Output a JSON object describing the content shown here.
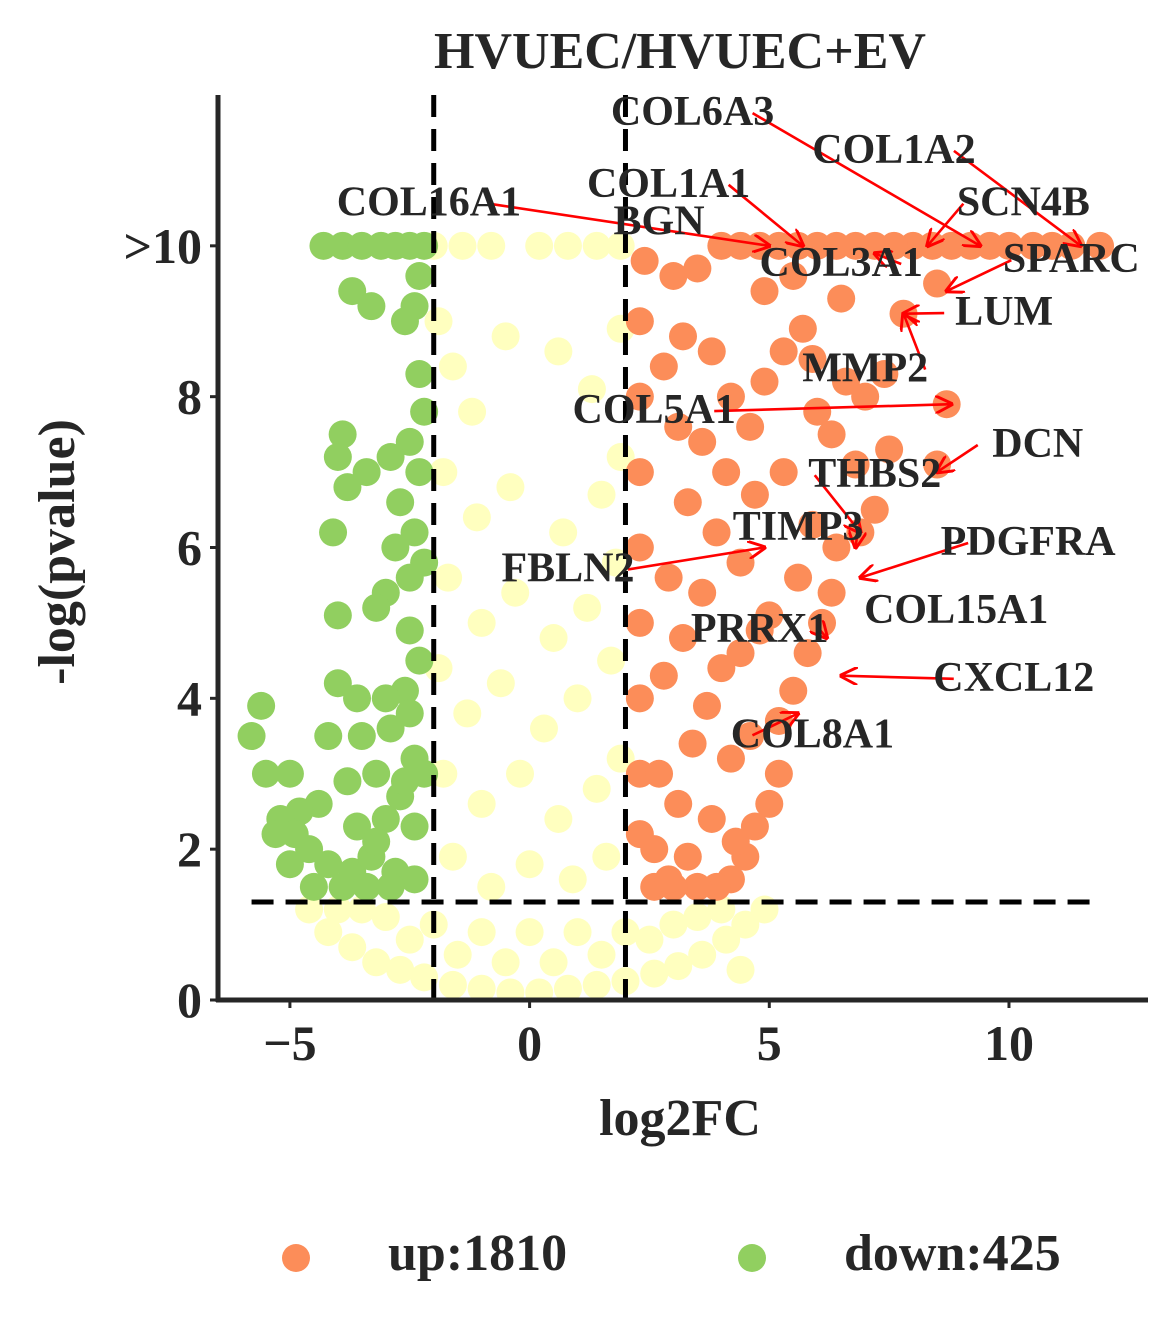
{
  "chart_data": {
    "type": "scatter",
    "title": "HVUEC/HVUEC+EV",
    "xlabel": "log2FC",
    "ylabel": "-log(pvalue)",
    "xlim": [
      -6.5,
      12.9
    ],
    "ylim": [
      0,
      12
    ],
    "x_ticks": [
      {
        "value": -5,
        "label": "−5"
      },
      {
        "value": 0,
        "label": "0"
      },
      {
        "value": 5,
        "label": "5"
      },
      {
        "value": 10,
        "label": "10"
      }
    ],
    "y_ticks": [
      {
        "value": 0,
        "label": "0"
      },
      {
        "value": 2,
        "label": "2"
      },
      {
        "value": 4,
        "label": "4"
      },
      {
        "value": 6,
        "label": "6"
      },
      {
        "value": 8,
        "label": "8"
      },
      {
        "value": 10,
        "label": ">10"
      }
    ],
    "thresholds": {
      "log2fc": [
        -2,
        2
      ],
      "neg_log_p": 1.3
    },
    "grid": false,
    "legend_position": "bottom",
    "colors": {
      "up": "#fc8d59",
      "down": "#91cf60",
      "ns": "#ffffbf",
      "arrow": "#ff0000",
      "threshold_line": "#000000",
      "axis": "#262626"
    },
    "series": [
      {
        "name": "up:1810",
        "key": "up",
        "color": "#fc8d59"
      },
      {
        "name": "down:425",
        "key": "down",
        "color": "#91cf60"
      }
    ],
    "up_points": [
      [
        11.9,
        10
      ],
      [
        11.3,
        10
      ],
      [
        10.9,
        10
      ],
      [
        10.5,
        10
      ],
      [
        10.0,
        10
      ],
      [
        9.6,
        10
      ],
      [
        9.2,
        10
      ],
      [
        8.8,
        10
      ],
      [
        8.4,
        10
      ],
      [
        8.0,
        10
      ],
      [
        7.6,
        10
      ],
      [
        7.2,
        10
      ],
      [
        6.8,
        10
      ],
      [
        6.4,
        10
      ],
      [
        6.0,
        10
      ],
      [
        5.6,
        10
      ],
      [
        5.2,
        10
      ],
      [
        4.8,
        10
      ],
      [
        4.4,
        10
      ],
      [
        4.0,
        10
      ],
      [
        8.5,
        9.5
      ],
      [
        7.8,
        9.1
      ],
      [
        6.5,
        9.3
      ],
      [
        5.5,
        9.6
      ],
      [
        4.9,
        9.4
      ],
      [
        5.7,
        8.9
      ],
      [
        5.9,
        8.5
      ],
      [
        6.6,
        8.2
      ],
      [
        7.0,
        8.0
      ],
      [
        7.4,
        8.3
      ],
      [
        8.7,
        7.9
      ],
      [
        8.5,
        7.1
      ],
      [
        7.5,
        7.3
      ],
      [
        6.8,
        7.1
      ],
      [
        6.3,
        7.5
      ],
      [
        6.0,
        7.8
      ],
      [
        5.3,
        7.0
      ],
      [
        7.2,
        6.5
      ],
      [
        6.9,
        6.2
      ],
      [
        6.4,
        6.0
      ],
      [
        5.9,
        6.3
      ],
      [
        5.6,
        5.6
      ],
      [
        6.3,
        5.4
      ],
      [
        6.1,
        5.0
      ],
      [
        5.8,
        4.6
      ],
      [
        5.5,
        4.1
      ],
      [
        5.2,
        3.7
      ],
      [
        5.0,
        5.1
      ],
      [
        4.8,
        4.9
      ],
      [
        4.4,
        4.6
      ],
      [
        4.6,
        3.5
      ],
      [
        5.2,
        3.0
      ],
      [
        5.0,
        2.6
      ],
      [
        4.7,
        2.3
      ],
      [
        4.5,
        1.9
      ],
      [
        4.2,
        1.6
      ],
      [
        3.9,
        1.5
      ],
      [
        3.5,
        1.5
      ],
      [
        3.0,
        1.5
      ],
      [
        2.6,
        1.5
      ],
      [
        2.3,
        2.2
      ],
      [
        2.3,
        3.0
      ],
      [
        2.3,
        4.0
      ],
      [
        2.3,
        5.0
      ],
      [
        2.3,
        6.0
      ],
      [
        2.3,
        7.0
      ],
      [
        2.3,
        8.0
      ],
      [
        2.3,
        9.0
      ],
      [
        2.4,
        9.8
      ],
      [
        3.0,
        9.6
      ],
      [
        3.5,
        9.7
      ],
      [
        3.2,
        8.8
      ],
      [
        3.8,
        8.6
      ],
      [
        4.2,
        8.0
      ],
      [
        3.6,
        7.4
      ],
      [
        4.1,
        7.0
      ],
      [
        3.1,
        7.6
      ],
      [
        2.8,
        8.4
      ],
      [
        3.3,
        6.6
      ],
      [
        3.9,
        6.2
      ],
      [
        4.4,
        5.8
      ],
      [
        3.6,
        5.4
      ],
      [
        2.9,
        5.6
      ],
      [
        3.2,
        4.8
      ],
      [
        4.0,
        4.4
      ],
      [
        3.7,
        3.9
      ],
      [
        2.8,
        4.3
      ],
      [
        3.4,
        3.4
      ],
      [
        4.2,
        3.2
      ],
      [
        2.7,
        3.0
      ],
      [
        3.1,
        2.6
      ],
      [
        3.8,
        2.4
      ],
      [
        4.3,
        2.1
      ],
      [
        2.6,
        2.0
      ],
      [
        3.3,
        1.9
      ],
      [
        2.9,
        1.6
      ],
      [
        4.6,
        7.6
      ],
      [
        4.9,
        8.2
      ],
      [
        5.3,
        8.6
      ],
      [
        4.7,
        6.7
      ]
    ],
    "down_points": [
      [
        -4.3,
        10
      ],
      [
        -3.9,
        10
      ],
      [
        -3.5,
        10
      ],
      [
        -3.1,
        10
      ],
      [
        -2.8,
        10
      ],
      [
        -2.5,
        10
      ],
      [
        -2.2,
        10
      ],
      [
        -2.3,
        9.6
      ],
      [
        -2.4,
        9.2
      ],
      [
        -3.7,
        9.4
      ],
      [
        -3.3,
        9.2
      ],
      [
        -2.6,
        9.0
      ],
      [
        -2.3,
        8.3
      ],
      [
        -2.2,
        7.8
      ],
      [
        -2.5,
        7.4
      ],
      [
        -2.9,
        7.2
      ],
      [
        -3.4,
        7.0
      ],
      [
        -3.9,
        7.5
      ],
      [
        -4.0,
        7.2
      ],
      [
        -3.8,
        6.8
      ],
      [
        -2.7,
        6.6
      ],
      [
        -2.4,
        6.2
      ],
      [
        -2.2,
        5.8
      ],
      [
        -4.1,
        6.2
      ],
      [
        -2.8,
        6.0
      ],
      [
        -3.0,
        5.4
      ],
      [
        -3.2,
        5.2
      ],
      [
        -4.0,
        5.1
      ],
      [
        -2.5,
        4.9
      ],
      [
        -2.3,
        4.5
      ],
      [
        -2.6,
        4.1
      ],
      [
        -3.0,
        4.0
      ],
      [
        -3.6,
        4.0
      ],
      [
        -4.0,
        4.2
      ],
      [
        -2.5,
        3.8
      ],
      [
        -2.9,
        3.6
      ],
      [
        -3.5,
        3.5
      ],
      [
        -4.2,
        3.5
      ],
      [
        -2.4,
        3.2
      ],
      [
        -3.2,
        3.0
      ],
      [
        -3.8,
        2.9
      ],
      [
        -2.7,
        2.7
      ],
      [
        -3.0,
        2.4
      ],
      [
        -3.6,
        2.3
      ],
      [
        -4.4,
        2.6
      ],
      [
        -4.8,
        2.5
      ],
      [
        -5.2,
        2.4
      ],
      [
        -5.5,
        3.0
      ],
      [
        -5.8,
        3.5
      ],
      [
        -5.6,
        3.9
      ],
      [
        -5.0,
        3.0
      ],
      [
        -4.6,
        2.0
      ],
      [
        -4.2,
        1.8
      ],
      [
        -3.7,
        1.7
      ],
      [
        -3.3,
        1.9
      ],
      [
        -2.8,
        1.7
      ],
      [
        -2.4,
        1.6
      ],
      [
        -5.0,
        1.8
      ],
      [
        -4.5,
        1.5
      ],
      [
        -3.9,
        1.5
      ],
      [
        -3.4,
        1.5
      ],
      [
        -2.9,
        1.5
      ],
      [
        -2.4,
        2.3
      ],
      [
        -2.6,
        2.9
      ],
      [
        -3.2,
        2.1
      ],
      [
        -4.9,
        2.2
      ],
      [
        -5.3,
        2.2
      ],
      [
        -2.3,
        7.0
      ],
      [
        -2.5,
        5.6
      ],
      [
        -2.2,
        3.0
      ]
    ],
    "ns_points": [
      [
        -2.0,
        10
      ],
      [
        -1.4,
        10
      ],
      [
        -0.8,
        10
      ],
      [
        0.2,
        10
      ],
      [
        0.8,
        10
      ],
      [
        1.4,
        10
      ],
      [
        1.9,
        10
      ],
      [
        -1.9,
        9.0
      ],
      [
        -1.6,
        8.4
      ],
      [
        -1.2,
        7.8
      ],
      [
        -0.5,
        8.8
      ],
      [
        0.6,
        8.6
      ],
      [
        1.3,
        8.1
      ],
      [
        1.9,
        8.9
      ],
      [
        -1.8,
        7.0
      ],
      [
        -1.1,
        6.4
      ],
      [
        -0.4,
        6.8
      ],
      [
        0.7,
        6.2
      ],
      [
        1.5,
        6.7
      ],
      [
        1.9,
        7.2
      ],
      [
        -1.7,
        5.6
      ],
      [
        -1.0,
        5.0
      ],
      [
        -0.3,
        5.4
      ],
      [
        0.5,
        4.8
      ],
      [
        1.2,
        5.2
      ],
      [
        1.8,
        5.8
      ],
      [
        -1.9,
        4.4
      ],
      [
        -1.3,
        3.8
      ],
      [
        -0.6,
        4.2
      ],
      [
        0.3,
        3.6
      ],
      [
        1.0,
        4.0
      ],
      [
        1.7,
        4.5
      ],
      [
        -1.8,
        3.0
      ],
      [
        -1.0,
        2.6
      ],
      [
        -0.2,
        3.0
      ],
      [
        0.6,
        2.4
      ],
      [
        1.4,
        2.8
      ],
      [
        1.9,
        3.2
      ],
      [
        -1.6,
        1.9
      ],
      [
        -0.8,
        1.5
      ],
      [
        0.0,
        1.8
      ],
      [
        0.9,
        1.6
      ],
      [
        1.6,
        1.9
      ],
      [
        -4.6,
        1.2
      ],
      [
        -4.2,
        0.9
      ],
      [
        -3.7,
        0.7
      ],
      [
        -3.2,
        0.5
      ],
      [
        -2.7,
        0.4
      ],
      [
        -2.2,
        0.3
      ],
      [
        -1.6,
        0.2
      ],
      [
        -1.0,
        0.15
      ],
      [
        -0.4,
        0.1
      ],
      [
        0.2,
        0.1
      ],
      [
        0.8,
        0.15
      ],
      [
        1.4,
        0.2
      ],
      [
        2.0,
        0.25
      ],
      [
        2.6,
        0.35
      ],
      [
        3.1,
        0.45
      ],
      [
        3.6,
        0.6
      ],
      [
        4.1,
        0.8
      ],
      [
        4.5,
        1.0
      ],
      [
        4.9,
        1.2
      ],
      [
        -4.0,
        1.2
      ],
      [
        -3.0,
        1.1
      ],
      [
        -2.0,
        1.0
      ],
      [
        -1.0,
        0.9
      ],
      [
        0.0,
        0.9
      ],
      [
        1.0,
        0.9
      ],
      [
        2.0,
        0.9
      ],
      [
        3.0,
        1.0
      ],
      [
        4.0,
        1.2
      ],
      [
        -3.5,
        1.2
      ],
      [
        -2.5,
        0.8
      ],
      [
        -1.5,
        0.6
      ],
      [
        -0.5,
        0.5
      ],
      [
        0.5,
        0.5
      ],
      [
        1.5,
        0.6
      ],
      [
        2.5,
        0.8
      ],
      [
        3.5,
        1.1
      ],
      [
        4.4,
        0.4
      ]
    ],
    "annotations": [
      {
        "label": "COL6A3",
        "text_x": 3.4,
        "text_y": 11.6,
        "point_x": 9.4,
        "point_y": 10.0
      },
      {
        "label": "COL1A2",
        "text_x": 7.6,
        "text_y": 11.1,
        "point_x": 11.5,
        "point_y": 10.0
      },
      {
        "label": "COL1A1",
        "text_x": 2.9,
        "text_y": 10.65,
        "point_x": 5.7,
        "point_y": 10.0
      },
      {
        "label": "COL16A1",
        "text_x": -2.1,
        "text_y": 10.4,
        "point_x": 5.0,
        "point_y": 10.0
      },
      {
        "label": "BGN",
        "text_x": 2.7,
        "text_y": 10.15,
        "point_x": null,
        "point_y": null
      },
      {
        "label": "SCN4B",
        "text_x": 10.3,
        "text_y": 10.4,
        "point_x": 8.3,
        "point_y": 10.0
      },
      {
        "label": "SPARC",
        "text_x": 11.3,
        "text_y": 9.65,
        "point_x": 8.7,
        "point_y": 9.4
      },
      {
        "label": "COL3A1",
        "text_x": 6.5,
        "text_y": 9.6,
        "point_x": 7.2,
        "point_y": 9.9
      },
      {
        "label": "LUM",
        "text_x": 9.9,
        "text_y": 8.95,
        "point_x": 7.8,
        "point_y": 9.1
      },
      {
        "label": "MMP2",
        "text_x": 7.0,
        "text_y": 8.2,
        "point_x": 7.8,
        "point_y": 9.1
      },
      {
        "label": "COL5A1",
        "text_x": 2.6,
        "text_y": 7.65,
        "point_x": 8.8,
        "point_y": 7.9
      },
      {
        "label": "DCN",
        "text_x": 10.6,
        "text_y": 7.2,
        "point_x": 8.5,
        "point_y": 7.0
      },
      {
        "label": "THBS2",
        "text_x": 7.2,
        "text_y": 6.8,
        "point_x": 6.9,
        "point_y": 6.2
      },
      {
        "label": "TIMP3",
        "text_x": 5.6,
        "text_y": 6.1,
        "point_x": 6.8,
        "point_y": 6.0
      },
      {
        "label": "PDGFRA",
        "text_x": 10.4,
        "text_y": 5.9,
        "point_x": 6.9,
        "point_y": 5.6
      },
      {
        "label": "FBLN2",
        "text_x": 0.8,
        "text_y": 5.55,
        "point_x": 4.9,
        "point_y": 6.0
      },
      {
        "label": "COL15A1",
        "text_x": 8.9,
        "text_y": 5.0,
        "point_x": null,
        "point_y": null
      },
      {
        "label": "PRRX1",
        "text_x": 4.8,
        "text_y": 4.75,
        "point_x": 6.2,
        "point_y": 4.8
      },
      {
        "label": "CXCL12",
        "text_x": 10.1,
        "text_y": 4.1,
        "point_x": 6.5,
        "point_y": 4.3
      },
      {
        "label": "COL8A1",
        "text_x": 5.9,
        "text_y": 3.35,
        "point_x": 5.6,
        "point_y": 3.8
      }
    ]
  }
}
